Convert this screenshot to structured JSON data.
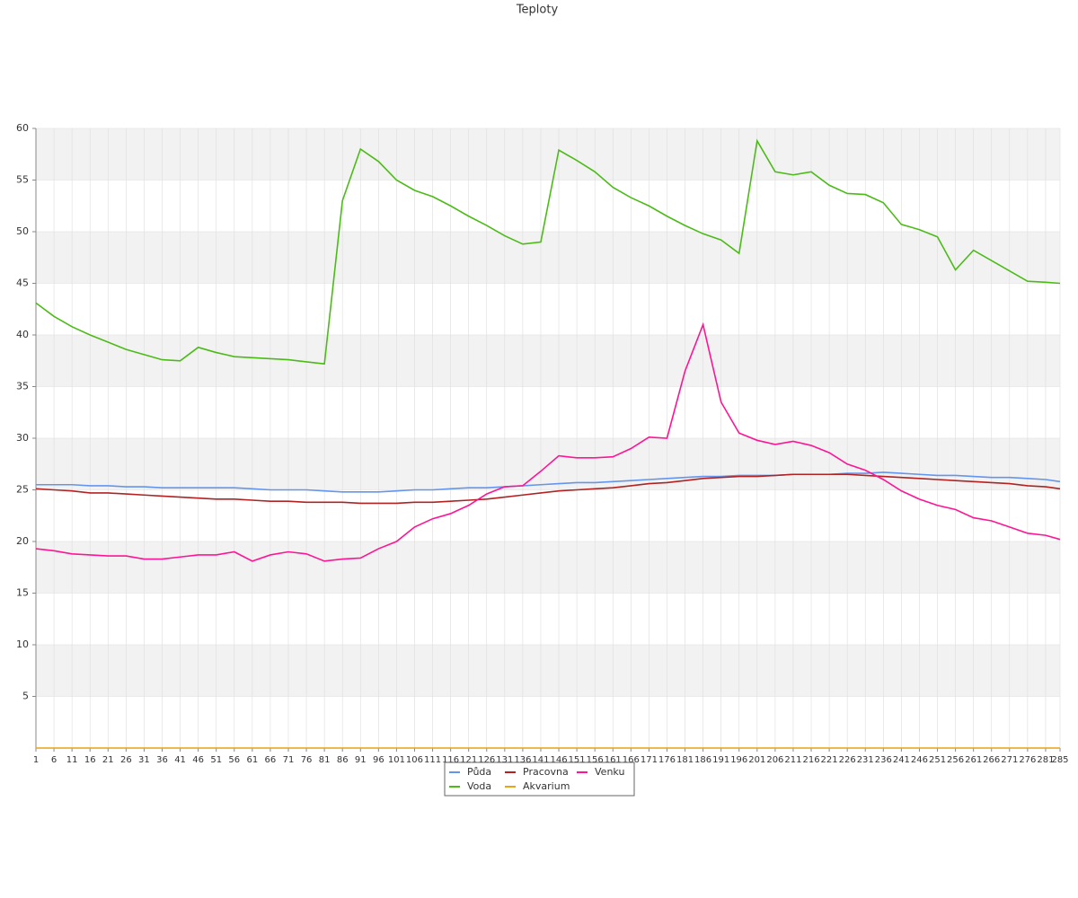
{
  "chart_data": {
    "type": "line",
    "title": "Teploty",
    "x": [
      1,
      6,
      11,
      16,
      21,
      26,
      31,
      36,
      41,
      46,
      51,
      56,
      61,
      66,
      71,
      76,
      81,
      86,
      91,
      96,
      101,
      106,
      111,
      116,
      121,
      126,
      131,
      136,
      141,
      146,
      151,
      156,
      161,
      166,
      171,
      176,
      181,
      186,
      191,
      196,
      201,
      206,
      211,
      216,
      221,
      226,
      231,
      236,
      241,
      246,
      251,
      256,
      261,
      266,
      271,
      276,
      281,
      285
    ],
    "xlim": [
      1,
      285
    ],
    "ylim": [
      0,
      60
    ],
    "yticks": [
      5,
      10,
      15,
      20,
      25,
      30,
      35,
      40,
      45,
      50,
      55,
      60
    ],
    "grid": true,
    "series": [
      {
        "name": "Půda",
        "color": "#6495ed",
        "values": [
          25.5,
          25.5,
          25.5,
          25.4,
          25.4,
          25.3,
          25.3,
          25.2,
          25.2,
          25.2,
          25.2,
          25.2,
          25.1,
          25.0,
          25.0,
          25.0,
          24.9,
          24.8,
          24.8,
          24.8,
          24.9,
          25.0,
          25.0,
          25.1,
          25.2,
          25.2,
          25.3,
          25.4,
          25.5,
          25.6,
          25.7,
          25.7,
          25.8,
          25.9,
          26.0,
          26.1,
          26.2,
          26.3,
          26.3,
          26.4,
          26.4,
          26.4,
          26.5,
          26.5,
          26.5,
          26.6,
          26.6,
          26.7,
          26.6,
          26.5,
          26.4,
          26.4,
          26.3,
          26.2,
          26.2,
          26.1,
          26.0,
          25.8
        ]
      },
      {
        "name": "Pracovna",
        "color": "#b22222",
        "values": [
          25.1,
          25.0,
          24.9,
          24.7,
          24.7,
          24.6,
          24.5,
          24.4,
          24.3,
          24.2,
          24.1,
          24.1,
          24.0,
          23.9,
          23.9,
          23.8,
          23.8,
          23.8,
          23.7,
          23.7,
          23.7,
          23.8,
          23.8,
          23.9,
          24.0,
          24.1,
          24.3,
          24.5,
          24.7,
          24.9,
          25.0,
          25.1,
          25.2,
          25.4,
          25.6,
          25.7,
          25.9,
          26.1,
          26.2,
          26.3,
          26.3,
          26.4,
          26.5,
          26.5,
          26.5,
          26.5,
          26.4,
          26.3,
          26.2,
          26.1,
          26.0,
          25.9,
          25.8,
          25.7,
          25.6,
          25.4,
          25.3,
          25.1
        ]
      },
      {
        "name": "Venku",
        "color": "#ff1493",
        "values": [
          19.3,
          19.1,
          18.8,
          18.7,
          18.6,
          18.6,
          18.3,
          18.3,
          18.5,
          18.7,
          18.7,
          19.0,
          18.1,
          18.7,
          19.0,
          18.8,
          18.1,
          18.3,
          18.4,
          19.3,
          20.0,
          21.4,
          22.2,
          22.7,
          23.5,
          24.6,
          25.3,
          25.4,
          26.8,
          28.3,
          28.1,
          28.1,
          28.2,
          29.0,
          30.1,
          30.0,
          36.5,
          41.0,
          33.5,
          30.5,
          29.8,
          29.4,
          29.7,
          29.3,
          28.6,
          27.5,
          26.9,
          26.0,
          24.9,
          24.1,
          23.5,
          23.1,
          22.3,
          22.0,
          21.4,
          20.8,
          20.6,
          20.2
        ]
      },
      {
        "name": "Voda",
        "color": "#4cbb17",
        "values": [
          43.1,
          41.8,
          40.8,
          40.0,
          39.3,
          38.6,
          38.1,
          37.6,
          37.5,
          38.8,
          38.3,
          37.9,
          37.8,
          37.7,
          37.6,
          37.4,
          37.2,
          53,
          58.0,
          56.8,
          55.0,
          54.0,
          53.4,
          52.5,
          51.5,
          50.6,
          49.6,
          48.8,
          49,
          57.9,
          56.9,
          55.8,
          54.3,
          53.3,
          52.5,
          51.5,
          50.6,
          49.8,
          49.2,
          47.9,
          58.8,
          55.8,
          55.5,
          55.8,
          54.5,
          53.7,
          53.6,
          52.8,
          50.7,
          50.2,
          49.5,
          46.3,
          48.2,
          47.2,
          46.2,
          45.2,
          45.1,
          45.0
        ]
      },
      {
        "name": "Akvarium",
        "color": "#e8a317",
        "values": [
          0,
          0,
          0,
          0,
          0,
          0,
          0,
          0,
          0,
          0,
          0,
          0,
          0,
          0,
          0,
          0,
          0,
          0,
          0,
          0,
          0,
          0,
          0,
          0,
          0,
          0,
          0,
          0,
          0,
          0,
          0,
          0,
          0,
          0,
          0,
          0,
          0,
          0,
          0,
          0,
          0,
          0,
          0,
          0,
          0,
          0,
          0,
          0,
          0,
          0,
          0,
          0,
          0,
          0,
          0,
          0,
          0,
          0
        ]
      }
    ]
  }
}
